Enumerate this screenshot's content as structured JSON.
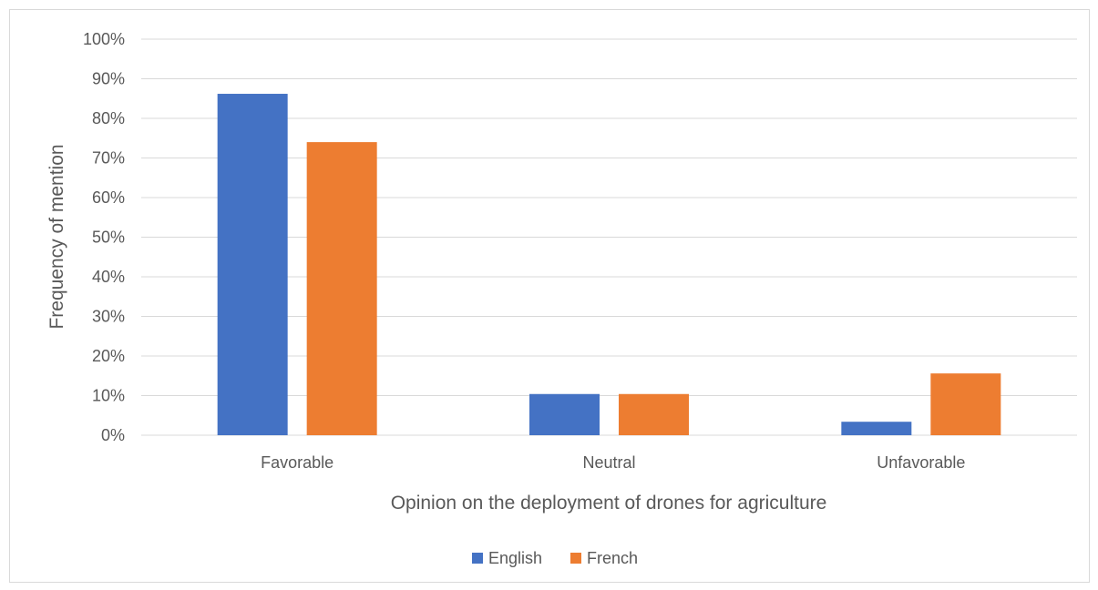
{
  "chart_data": {
    "type": "bar",
    "title": "",
    "xlabel": "Opinion on the deployment of drones for agriculture",
    "ylabel": "Frequency of mention",
    "categories": [
      "Favorable",
      "Neutral",
      "Unfavorable"
    ],
    "series": [
      {
        "name": "English",
        "color": "#4472c4",
        "values": [
          0.862,
          0.104,
          0.034
        ]
      },
      {
        "name": "French",
        "color": "#ed7d31",
        "values": [
          0.74,
          0.104,
          0.156
        ]
      }
    ],
    "ylim": [
      0,
      1
    ],
    "yticks": [
      {
        "value": 0,
        "label": "0%"
      },
      {
        "value": 0.1,
        "label": "10%"
      },
      {
        "value": 0.2,
        "label": "20%"
      },
      {
        "value": 0.3,
        "label": "30%"
      },
      {
        "value": 0.4,
        "label": "40%"
      },
      {
        "value": 0.5,
        "label": "50%"
      },
      {
        "value": 0.6,
        "label": "60%"
      },
      {
        "value": 0.7,
        "label": "70%"
      },
      {
        "value": 0.8,
        "label": "80%"
      },
      {
        "value": 0.9,
        "label": "90%"
      },
      {
        "value": 1.0,
        "label": "100%"
      }
    ],
    "grid": true,
    "legend_position": "bottom",
    "gridline_color": "#d9d9d9"
  }
}
